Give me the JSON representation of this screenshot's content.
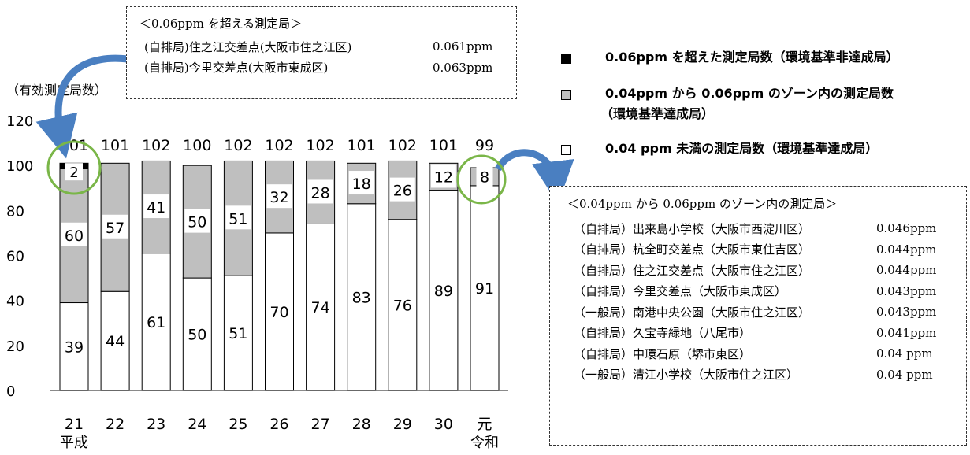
{
  "chart_data": {
    "type": "bar",
    "stacked": true,
    "y_axis_label": "（有効測定局数）",
    "ylim": [
      0,
      120
    ],
    "yticks": [
      0,
      20,
      40,
      60,
      80,
      100,
      120
    ],
    "categories": [
      "21",
      "22",
      "23",
      "24",
      "25",
      "26",
      "27",
      "28",
      "29",
      "30",
      "元"
    ],
    "category_sublabels": [
      "平成",
      "",
      "",
      "",
      "",
      "",
      "",
      "",
      "",
      "",
      "令和"
    ],
    "totals": [
      101,
      101,
      102,
      100,
      102,
      102,
      102,
      101,
      102,
      101,
      99
    ],
    "series": [
      {
        "name": "0.04 ppm 未満の測定局数（環境基準達成局）",
        "color": "#ffffff",
        "values": [
          39,
          44,
          61,
          50,
          51,
          70,
          74,
          83,
          76,
          89,
          91
        ]
      },
      {
        "name": "0.04ppm から 0.06ppm のゾーン内の測定局数",
        "name_line2": "（環境基準達成局）",
        "color": "#bfbfbf",
        "values": [
          60,
          57,
          41,
          50,
          51,
          32,
          28,
          18,
          26,
          12,
          8
        ]
      },
      {
        "name": "0.06ppm を超えた測定局数（環境基準非達成局）",
        "color": "#000000",
        "values": [
          2,
          0,
          0,
          0,
          0,
          0,
          0,
          0,
          0,
          0,
          0
        ]
      }
    ],
    "grid": false,
    "legend_position": "top-right"
  },
  "callouts": {
    "over006": {
      "title": "＜0.06ppm を超える測定局＞",
      "rows": [
        {
          "station": "(自排局)住之江交差点(大阪市住之江区)",
          "value": "0.061ppm"
        },
        {
          "station": "(自排局)今里交差点(大阪市東成区)",
          "value": "0.063ppm"
        }
      ]
    },
    "zone": {
      "title": "＜0.04ppm から 0.06ppm のゾーン内の測定局＞",
      "rows": [
        {
          "station": "（自排局）出来島小学校（大阪市西淀川区）",
          "value": "0.046ppm"
        },
        {
          "station": "（自排局）杭全町交差点（大阪市東住吉区）",
          "value": "0.044ppm"
        },
        {
          "station": "（自排局）住之江交差点（大阪市住之江区）",
          "value": "0.044ppm"
        },
        {
          "station": "（自排局）今里交差点（大阪市東成区）",
          "value": "0.043ppm"
        },
        {
          "station": "（一般局）南港中央公園（大阪市住之江区）",
          "value": "0.043ppm"
        },
        {
          "station": "（自排局）久宝寺緑地（八尾市）",
          "value": "0.041ppm"
        },
        {
          "station": "（自排局）中環石原（堺市東区）",
          "value": "0.04 ppm"
        },
        {
          "station": "（一般局）清江小学校（大阪市住之江区）",
          "value": "0.04 ppm"
        }
      ]
    }
  }
}
